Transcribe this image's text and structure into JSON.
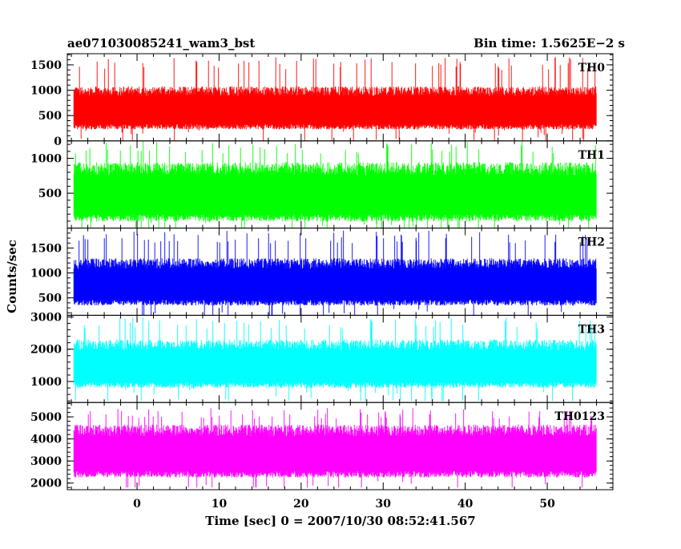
{
  "header": {
    "title": "ae071030085241_wam3_bst",
    "bin_time": "Bin time: 1.5625E−2 s"
  },
  "chart_data": {
    "type": "line",
    "title": "ae071030085241_wam3_bst",
    "subtitle": "Bin time: 1.5625E−2 s",
    "xlabel": "Time [sec] 0 = 2007/10/30 08:52:41.567",
    "ylabel": "Counts/sec",
    "xlim": [
      -8.5,
      58
    ],
    "x_ticks": [
      0,
      10,
      20,
      30,
      40,
      50
    ],
    "x_tick_labels": [
      "0",
      "10",
      "20",
      "30",
      "40",
      "50"
    ],
    "x_data_range": [
      -7.7,
      56.0
    ],
    "bin_time": 0.015625,
    "grid": false,
    "panels": [
      {
        "name": "TH0",
        "color": "#ff0000",
        "ylim": [
          0,
          1720
        ],
        "y_ticks": [
          0,
          500,
          1000,
          1500
        ],
        "y_tick_labels": [
          "0",
          "500",
          "1000",
          "1500"
        ],
        "typical_range": [
          200,
          1050
        ],
        "mean": 650,
        "min": 0,
        "max": 1650
      },
      {
        "name": "TH1",
        "color": "#00ff00",
        "ylim": [
          0,
          1250
        ],
        "y_ticks": [
          500,
          1000
        ],
        "y_tick_labels": [
          "500",
          "1000"
        ],
        "typical_range": [
          100,
          950
        ],
        "mean": 520,
        "min": 0,
        "max": 1250
      },
      {
        "name": "TH2",
        "color": "#0000ff",
        "ylim": [
          150,
          1900
        ],
        "y_ticks": [
          500,
          1000,
          1500
        ],
        "y_tick_labels": [
          "500",
          "1000",
          "1500"
        ],
        "typical_range": [
          350,
          1300
        ],
        "mean": 820,
        "min": 150,
        "max": 1850
      },
      {
        "name": "TH3",
        "color": "#00ffff",
        "ylim": [
          350,
          3050
        ],
        "y_ticks": [
          1000,
          2000,
          3000
        ],
        "y_tick_labels": [
          "1000",
          "2000",
          "3000"
        ],
        "typical_range": [
          800,
          2300
        ],
        "mean": 1550,
        "min": 400,
        "max": 3000
      },
      {
        "name": "TH0123",
        "color": "#ff00ff",
        "ylim": [
          1700,
          5650
        ],
        "y_ticks": [
          2000,
          3000,
          4000,
          5000
        ],
        "y_tick_labels": [
          "2000",
          "3000",
          "4000",
          "5000"
        ],
        "typical_range": [
          2300,
          4700
        ],
        "mean": 3450,
        "min": 1800,
        "max": 5400
      }
    ]
  }
}
